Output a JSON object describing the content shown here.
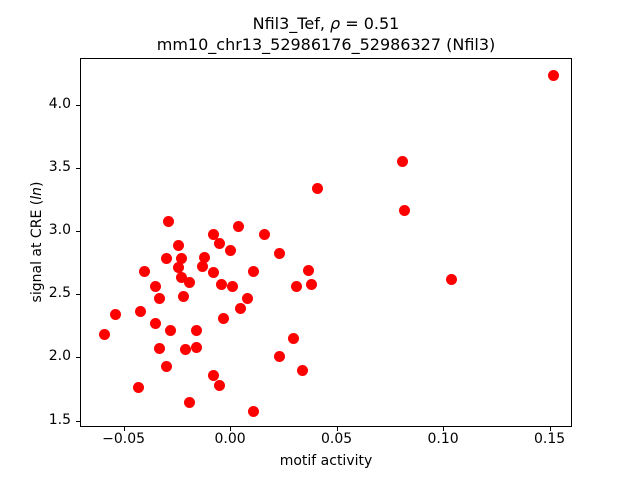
{
  "title": {
    "part1": "Nfil3_Tef, ",
    "rho": "ρ",
    "part2": " = 0.51",
    "line2": "mm10_chr13_52986176_52986327 (Nfil3)"
  },
  "xlabel": "motif activity",
  "ylabel": {
    "prefix": "signal at CRE (",
    "italic": "ln",
    "suffix": ")"
  },
  "chart_data": {
    "type": "scatter",
    "title": "Nfil3_Tef, ρ = 0.51\nmm10_chr13_52986176_52986327 (Nfil3)",
    "xlabel": "motif activity",
    "ylabel": "signal at CRE (ln)",
    "correlation_rho": 0.51,
    "marker_color": "#ff0000",
    "grid": false,
    "xlim": [
      -0.07,
      0.161
    ],
    "ylim": [
      1.441,
      4.363
    ],
    "xticks": [
      {
        "value": -0.05,
        "label": "−0.05"
      },
      {
        "value": 0.0,
        "label": "0.00"
      },
      {
        "value": 0.05,
        "label": "0.05"
      },
      {
        "value": 0.1,
        "label": "0.10"
      },
      {
        "value": 0.15,
        "label": "0.15"
      }
    ],
    "yticks": [
      {
        "value": 1.5,
        "label": "1.5"
      },
      {
        "value": 2.0,
        "label": "2.0"
      },
      {
        "value": 2.5,
        "label": "2.5"
      },
      {
        "value": 3.0,
        "label": "3.0"
      },
      {
        "value": 3.5,
        "label": "3.5"
      },
      {
        "value": 4.0,
        "label": "4.0"
      }
    ],
    "points": [
      [
        0.152,
        4.23
      ],
      [
        0.081,
        3.55
      ],
      [
        0.082,
        3.16
      ],
      [
        0.041,
        3.34
      ],
      [
        0.104,
        2.62
      ],
      [
        -0.029,
        3.08
      ],
      [
        0.004,
        3.04
      ],
      [
        -0.024,
        2.89
      ],
      [
        -0.008,
        2.97
      ],
      [
        -0.005,
        2.9
      ],
      [
        0.0,
        2.85
      ],
      [
        -0.03,
        2.78
      ],
      [
        -0.023,
        2.78
      ],
      [
        -0.012,
        2.79
      ],
      [
        -0.013,
        2.72
      ],
      [
        -0.008,
        2.67
      ],
      [
        -0.024,
        2.71
      ],
      [
        -0.023,
        2.63
      ],
      [
        -0.04,
        2.68
      ],
      [
        -0.019,
        2.59
      ],
      [
        -0.004,
        2.58
      ],
      [
        0.001,
        2.56
      ],
      [
        -0.035,
        2.56
      ],
      [
        -0.033,
        2.47
      ],
      [
        -0.022,
        2.48
      ],
      [
        0.008,
        2.47
      ],
      [
        0.005,
        2.39
      ],
      [
        -0.042,
        2.36
      ],
      [
        -0.054,
        2.34
      ],
      [
        -0.003,
        2.31
      ],
      [
        0.016,
        2.97
      ],
      [
        0.023,
        2.82
      ],
      [
        0.011,
        2.68
      ],
      [
        0.037,
        2.69
      ],
      [
        0.031,
        2.56
      ],
      [
        0.038,
        2.58
      ],
      [
        -0.035,
        2.27
      ],
      [
        -0.028,
        2.21
      ],
      [
        -0.059,
        2.18
      ],
      [
        -0.016,
        2.21
      ],
      [
        -0.033,
        2.07
      ],
      [
        -0.021,
        2.06
      ],
      [
        -0.016,
        2.08
      ],
      [
        -0.03,
        1.93
      ],
      [
        -0.008,
        1.86
      ],
      [
        -0.005,
        1.78
      ],
      [
        -0.043,
        1.76
      ],
      [
        -0.019,
        1.64
      ],
      [
        0.011,
        1.57
      ],
      [
        0.03,
        2.15
      ],
      [
        0.023,
        2.01
      ],
      [
        0.034,
        1.9
      ]
    ]
  }
}
